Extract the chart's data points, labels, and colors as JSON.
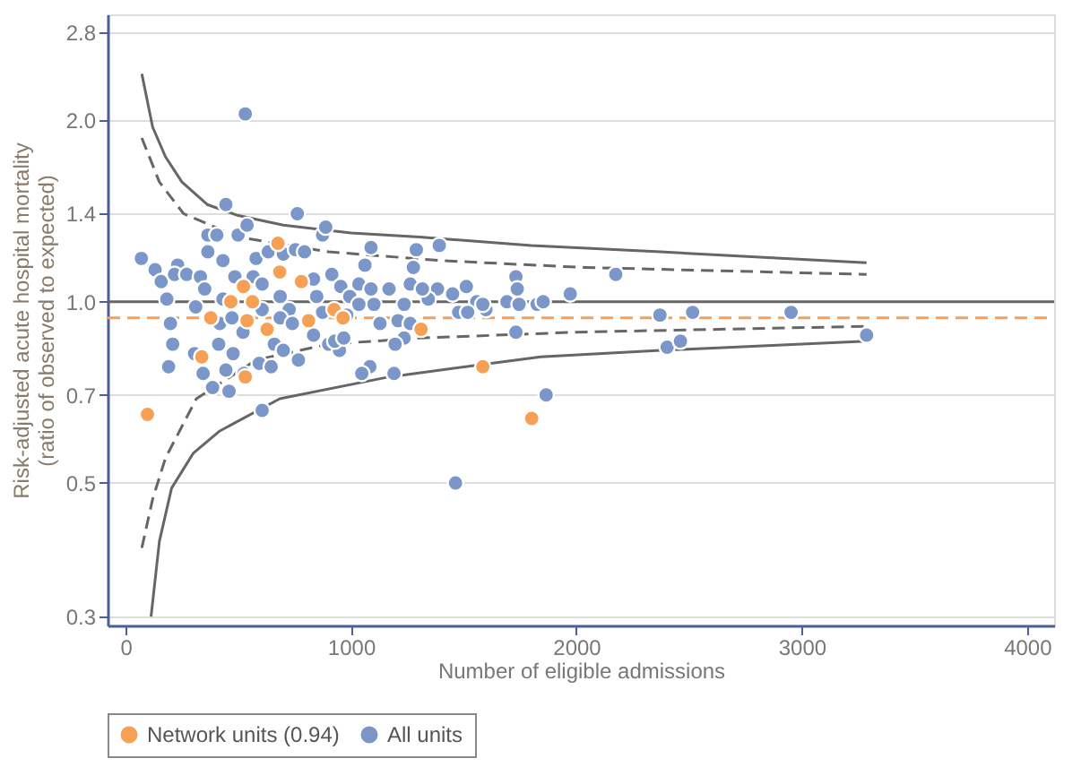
{
  "chart_data": {
    "type": "scatter",
    "xlabel": "Number of eligible admissions",
    "ylabel": "Risk-adjusted acute hospital mortality\n(ratio of observed to expected)",
    "log": "y",
    "grid": "y",
    "legend": "bottom",
    "xlim": [
      -80,
      4120
    ],
    "xticks": [
      0,
      1000,
      2000,
      3000,
      4000
    ],
    "ylim": [
      0.29,
      3.0
    ],
    "yticks": [
      0.3,
      0.5,
      0.7,
      {
        "value": 1.0,
        "label": "1.0"
      },
      1.4,
      {
        "value": 2.0,
        "label": "2.0"
      },
      2.8
    ],
    "ref_lines": [
      {
        "axis": "y",
        "value": 1.0,
        "color": "#666666",
        "line_style": "solid"
      },
      {
        "axis": "y",
        "value": 0.94,
        "color": "#f5a055",
        "line_style": "dashed"
      }
    ],
    "series": [
      {
        "type": "line",
        "color": "#666666",
        "line_style": "solid",
        "x": [
          72,
          120,
          177,
          250,
          362,
          500,
          700,
          1000,
          1303,
          1800,
          2373,
          3288
        ],
        "values": [
          2.39,
          1.95,
          1.74,
          1.58,
          1.45,
          1.39,
          1.34,
          1.3,
          1.28,
          1.24,
          1.21,
          1.16
        ]
      },
      {
        "type": "line",
        "color": "#666666",
        "line_style": "dashed",
        "x": [
          72,
          150,
          257,
          500,
          901,
          1400,
          2027,
          3288
        ],
        "values": [
          1.87,
          1.58,
          1.4,
          1.28,
          1.21,
          1.17,
          1.14,
          1.11
        ]
      },
      {
        "type": "line",
        "color": "#666666",
        "line_style": "dashed",
        "x": [
          72,
          120,
          177,
          314,
          579,
          900,
          1303,
          2000,
          3288
        ],
        "values": [
          0.39,
          0.47,
          0.55,
          0.69,
          0.8,
          0.85,
          0.87,
          0.89,
          0.91
        ]
      },
      {
        "type": "line",
        "color": "#666666",
        "line_style": "solid",
        "x": [
          113,
          150,
          204,
          300,
          418,
          684,
          1169,
          1842,
          2373,
          3288
        ],
        "values": [
          0.3,
          0.4,
          0.49,
          0.56,
          0.61,
          0.69,
          0.75,
          0.81,
          0.83,
          0.86
        ]
      },
      {
        "name": "All units",
        "color": "#7b96c8",
        "marker": "circle",
        "x": [
          70,
          131,
          158,
          183,
          231,
          217,
          271,
          199,
          209,
          191,
          332,
          351,
          311,
          365,
          405,
          365,
          432,
          499,
          539,
          445,
          485,
          432,
          418,
          413,
          306,
          344,
          386,
          445,
          477,
          521,
          566,
          606,
          579,
          633,
          700,
          754,
          794,
          762,
          874,
          888,
          834,
          848,
          874,
          726,
          686,
          660,
          700,
          767,
          593,
          646,
          606,
          525,
          901,
          949,
          928,
          968,
          915,
          955,
          995,
          1035,
          1062,
          1089,
          1102,
          1129,
          1169,
          1209,
          1236,
          1263,
          1277,
          1290,
          1236,
          1263,
          1191,
          1084,
          1048,
          1392,
          1384,
          1343,
          1451,
          1512,
          1478,
          1558,
          1599,
          1692,
          1732,
          1746,
          1732,
          1826,
          1866,
          1973,
          459,
          606,
          686,
          740,
          834,
          472,
          981,
          1035,
          1089,
          1196,
          1317,
          1518,
          1585,
          1738,
          1853,
          2175,
          2371,
          2516,
          2953,
          2403,
          2462,
          3288,
          1464,
          531
        ],
        "values": [
          1.18,
          1.13,
          1.08,
          1.01,
          1.15,
          1.11,
          1.11,
          0.92,
          0.85,
          0.78,
          1.1,
          1.05,
          0.98,
          1.29,
          1.29,
          1.21,
          1.17,
          1.29,
          1.34,
          1.45,
          1.1,
          1.01,
          0.92,
          0.85,
          0.82,
          0.76,
          0.72,
          0.77,
          0.82,
          0.89,
          1.1,
          1.07,
          1.18,
          1.21,
          1.2,
          1.22,
          1.21,
          1.4,
          1.29,
          1.33,
          1.09,
          1.02,
          0.96,
          0.97,
          1.02,
          0.85,
          0.83,
          0.8,
          0.79,
          0.78,
          0.66,
          0.76,
          0.85,
          0.83,
          0.86,
          0.87,
          1.11,
          1.06,
          1.02,
          1.07,
          1.15,
          1.23,
          0.99,
          0.92,
          1.05,
          0.93,
          0.99,
          1.07,
          1.14,
          1.22,
          0.87,
          0.92,
          0.76,
          0.78,
          0.76,
          1.24,
          1.05,
          1.01,
          1.03,
          1.06,
          0.96,
          1.0,
          0.97,
          1.0,
          1.1,
          0.99,
          0.89,
          0.99,
          0.7,
          1.03,
          0.71,
          0.97,
          0.94,
          0.92,
          0.88,
          0.94,
          0.95,
          0.99,
          1.05,
          0.85,
          1.05,
          0.96,
          0.99,
          1.05,
          1.0,
          1.11,
          0.95,
          0.96,
          0.96,
          0.84,
          0.86,
          0.88,
          0.5,
          2.05
        ]
      },
      {
        "name": "Network units (0.94)",
        "color": "#f5a055",
        "marker": "circle",
        "x": [
          97,
          676,
          523,
          684,
          780,
          467,
          563,
          378,
          539,
          628,
          812,
          925,
          965,
          338,
          531,
          1311,
          1585,
          1802
        ],
        "values": [
          0.65,
          1.25,
          1.06,
          1.12,
          1.08,
          1.0,
          1.0,
          0.94,
          0.93,
          0.9,
          0.93,
          0.97,
          0.94,
          0.81,
          0.75,
          0.9,
          0.78,
          0.64
        ]
      }
    ]
  }
}
